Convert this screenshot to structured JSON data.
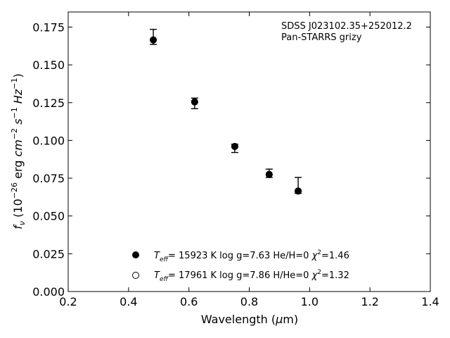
{
  "chart_data": {
    "type": "scatter",
    "title": "",
    "xlabel_parts": [
      "Wavelength (",
      "μ",
      "m)"
    ],
    "ylabel_parts": [
      "f",
      "ν",
      " (10",
      "−26",
      " erg ",
      "cm",
      "−2",
      " ",
      "s",
      "−1",
      " ",
      "Hz",
      "−1",
      ")"
    ],
    "xlim": [
      0.2,
      1.4
    ],
    "ylim": [
      0.0,
      0.185
    ],
    "xticks": [
      0.2,
      0.4,
      0.6,
      0.8,
      1.0,
      1.2,
      1.4
    ],
    "xtick_labels": [
      "0.2",
      "0.4",
      "0.6",
      "0.8",
      "1.0",
      "1.2",
      "1.4"
    ],
    "yticks": [
      0.0,
      0.025,
      0.05,
      0.075,
      0.1,
      0.125,
      0.15,
      0.175
    ],
    "ytick_labels": [
      "0.000",
      "0.025",
      "0.050",
      "0.075",
      "0.100",
      "0.125",
      "0.150",
      "0.175"
    ],
    "annotation": [
      "SDSS J023102.35+252012.2",
      "Pan-STARRS grizy"
    ],
    "observed": {
      "x": [
        0.482,
        0.619,
        0.752,
        0.866,
        0.962
      ],
      "y": [
        0.1665,
        0.1255,
        0.096,
        0.0775,
        0.0665
      ],
      "yerr_low": [
        0.1635,
        0.121,
        0.092,
        0.0755,
        0.065
      ],
      "yerr_high": [
        0.1735,
        0.128,
        0.0975,
        0.081,
        0.0755
      ]
    },
    "series": [
      {
        "marker": "filled-circle",
        "x": [
          0.482,
          0.619,
          0.752,
          0.866,
          0.962
        ],
        "y": [
          0.1665,
          0.1255,
          0.096,
          0.0775,
          0.0665
        ],
        "label_parts": [
          "T",
          "eff",
          "= 15923 K  log g=7.63  He/H=0  ",
          "χ",
          "2",
          "=1.46"
        ]
      },
      {
        "marker": "open-circle",
        "x": [
          0.482,
          0.619,
          0.752,
          0.866,
          0.962
        ],
        "y": [
          0.1665,
          0.1255,
          0.096,
          0.0775,
          0.0665
        ],
        "label_parts": [
          "T",
          "eff",
          "= 17961 K  log g=7.86  H/He=0  ",
          "χ",
          "2",
          "=1.32"
        ]
      }
    ],
    "legend_position": "lower-center",
    "grid": false,
    "colors": {
      "marker": "#000000",
      "axes": "#000000",
      "background": "#ffffff"
    }
  }
}
